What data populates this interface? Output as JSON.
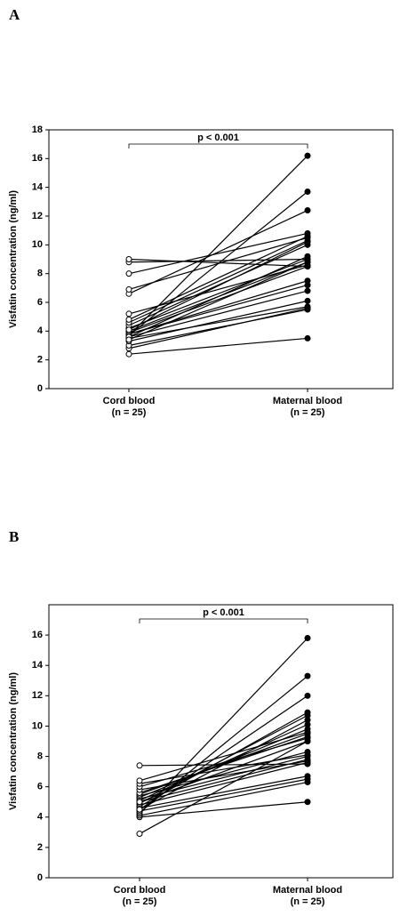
{
  "chart_data": [
    {
      "type": "paired",
      "panel": "A",
      "ylabel": "Visfatin concentration (ng/ml)",
      "annotation": "p < 0.001",
      "ylim": [
        0,
        18
      ],
      "yticks": [
        0,
        2,
        4,
        6,
        8,
        10,
        12,
        14,
        16,
        18
      ],
      "groups": [
        {
          "label": "Cord blood",
          "n_label": "(n = 25)",
          "color": "#ffffff",
          "values": [
            2.4,
            2.8,
            3.0,
            3.3,
            3.5,
            3.6,
            3.7,
            3.7,
            3.8,
            3.8,
            3.9,
            4.0,
            4.2,
            4.4,
            4.6,
            4.8,
            5.2,
            6.6,
            6.9,
            8.0,
            8.8,
            9.0,
            3.6,
            4.1,
            3.4
          ]
        },
        {
          "label": "Maternal blood",
          "n_label": "(n = 25)",
          "color": "#000000",
          "values": [
            3.5,
            5.6,
            5.5,
            6.1,
            5.7,
            6.8,
            16.2,
            13.7,
            7.2,
            7.5,
            8.5,
            8.8,
            9.0,
            10.0,
            10.3,
            10.6,
            8.6,
            12.4,
            10.5,
            10.8,
            9.0,
            8.5,
            9.2,
            10.2,
            8.8
          ]
        }
      ]
    },
    {
      "type": "paired",
      "panel": "B",
      "ylabel": "Visfatin concentration (ng/ml)",
      "annotation": "p < 0.001",
      "ylim": [
        0,
        18
      ],
      "yticks": [
        0,
        2,
        4,
        6,
        8,
        10,
        12,
        14,
        16
      ],
      "groups": [
        {
          "label": "Cord blood",
          "n_label": "(n = 25)",
          "color": "#ffffff",
          "values": [
            2.9,
            4.0,
            4.1,
            4.2,
            4.3,
            4.4,
            4.5,
            4.6,
            4.7,
            4.8,
            4.9,
            5.0,
            5.1,
            5.2,
            5.3,
            5.4,
            5.5,
            5.6,
            5.8,
            6.0,
            6.2,
            6.4,
            7.4,
            4.5,
            5.0
          ]
        },
        {
          "label": "Maternal blood",
          "n_label": "(n = 25)",
          "color": "#000000",
          "values": [
            9.0,
            5.0,
            6.3,
            15.8,
            13.3,
            6.5,
            12.0,
            6.7,
            10.9,
            7.6,
            10.7,
            7.8,
            10.1,
            8.0,
            9.8,
            8.3,
            9.5,
            9.3,
            7.7,
            9.2,
            8.1,
            9.6,
            7.5,
            10.4,
            9.0
          ]
        }
      ]
    }
  ]
}
